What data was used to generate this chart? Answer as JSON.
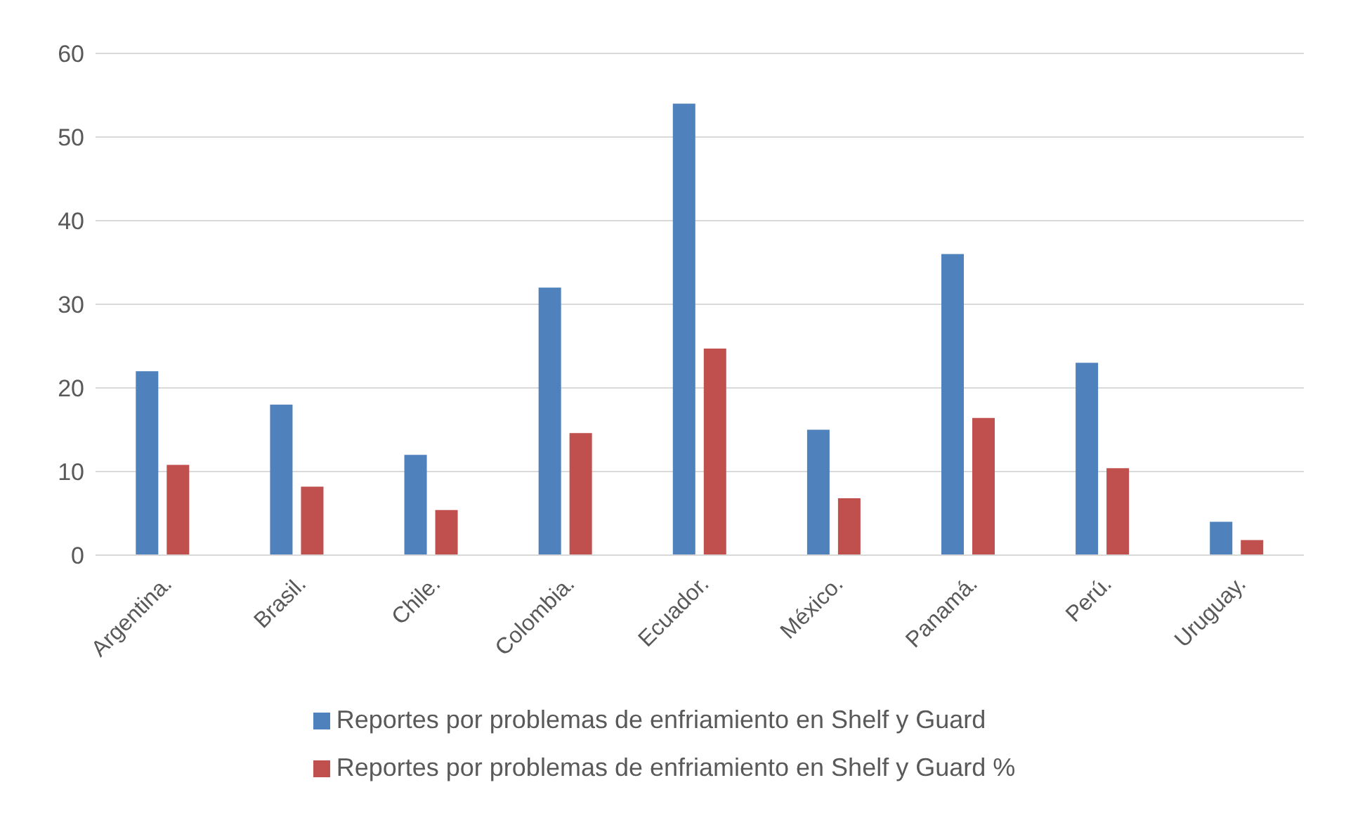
{
  "chart_data": {
    "type": "bar",
    "categories": [
      "Argentina.",
      "Brasil.",
      "Chile.",
      "Colombia.",
      "Ecuador.",
      "México.",
      "Panamá.",
      "Perú.",
      "Uruguay."
    ],
    "series": [
      {
        "name": "Reportes por problemas de enfriamiento en Shelf y Guard",
        "color": "#4f81bd",
        "values": [
          22,
          18,
          12,
          32,
          54,
          15,
          36,
          23,
          4
        ]
      },
      {
        "name": "Reportes por problemas de enfriamiento en Shelf y Guard %",
        "color": "#c0504d",
        "values": [
          10.8,
          8.2,
          5.4,
          14.6,
          24.7,
          6.8,
          16.4,
          10.4,
          1.8
        ]
      }
    ],
    "ylim": [
      0,
      60
    ],
    "yticks": [
      0,
      10,
      20,
      30,
      40,
      50,
      60
    ],
    "grid": "y",
    "legend": "bottom"
  }
}
